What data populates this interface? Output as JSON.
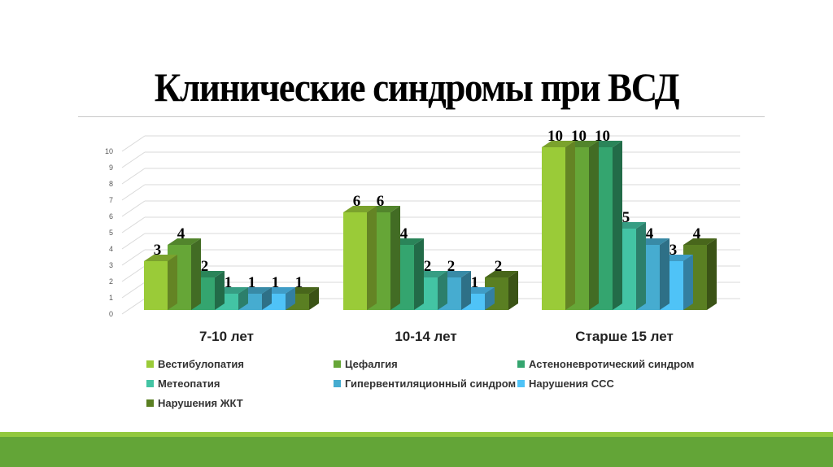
{
  "slide": {
    "title": "Клинические синдромы при ВСД",
    "colors": {
      "band_light": "#92c83e",
      "band_dark": "#63a537"
    }
  },
  "chart_data": {
    "type": "bar",
    "title": "Клинические синдромы при ВСД",
    "xlabel": "",
    "ylabel": "",
    "ylim": [
      0,
      10
    ],
    "yticks": [
      0,
      1,
      2,
      3,
      4,
      5,
      6,
      7,
      8,
      9,
      10
    ],
    "grid": true,
    "legend_position": "bottom",
    "style": "3d-clustered-column",
    "categories": [
      "7-10 лет",
      "10-14 лет",
      "Старше 15 лет"
    ],
    "series": [
      {
        "name": "Вестибулопатия",
        "color": "#9acb38",
        "values": [
          3,
          6,
          10
        ]
      },
      {
        "name": "Цефалгия",
        "color": "#66a637",
        "values": [
          4,
          6,
          10
        ]
      },
      {
        "name": "Астеноневротический синдром",
        "color": "#34a56f",
        "values": [
          2,
          4,
          10
        ]
      },
      {
        "name": "Метеопатия",
        "color": "#43c4a4",
        "values": [
          1,
          2,
          5
        ]
      },
      {
        "name": "Гипервентиляционный синдром",
        "color": "#46acd0",
        "values": [
          1,
          2,
          4
        ]
      },
      {
        "name": "Нарушения ССС",
        "color": "#4fc3f7",
        "values": [
          1,
          1,
          3
        ]
      },
      {
        "name": "Нарушения ЖКТ",
        "color": "#5a7f22",
        "values": [
          1,
          2,
          4
        ]
      }
    ]
  }
}
